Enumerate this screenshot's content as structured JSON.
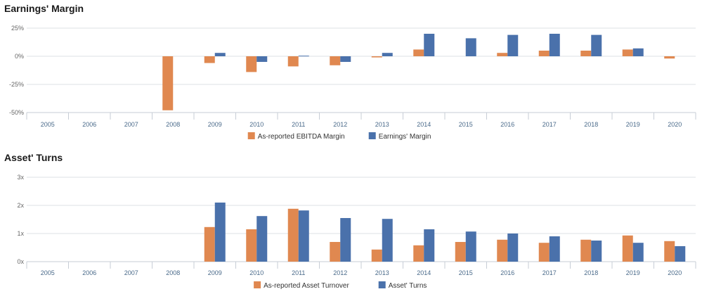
{
  "charts": [
    {
      "title": "Earnings' Margin",
      "categories": [
        "2005",
        "2006",
        "2007",
        "2008",
        "2009",
        "2010",
        "2011",
        "2012",
        "2013",
        "2014",
        "2015",
        "2016",
        "2017",
        "2018",
        "2019",
        "2020"
      ],
      "y_ticks": [
        "25%",
        "0%",
        "-25%",
        "-50%"
      ]
    },
    {
      "title": "Asset' Turns",
      "categories": [
        "2005",
        "2006",
        "2007",
        "2008",
        "2009",
        "2010",
        "2011",
        "2012",
        "2013",
        "2014",
        "2015",
        "2016",
        "2017",
        "2018",
        "2019",
        "2020"
      ],
      "y_ticks": [
        "3x",
        "2x",
        "1x",
        "0x"
      ]
    }
  ],
  "colors": {
    "orange": "#e08850",
    "blue": "#4a71ab",
    "grid": "#dde1e6",
    "axis": "#c7cdd6"
  },
  "chart_data": [
    {
      "type": "bar",
      "title": "Earnings' Margin",
      "categories": [
        "2005",
        "2006",
        "2007",
        "2008",
        "2009",
        "2010",
        "2011",
        "2012",
        "2013",
        "2014",
        "2015",
        "2016",
        "2017",
        "2018",
        "2019",
        "2020"
      ],
      "series": [
        {
          "name": "As-reported EBITDA Margin",
          "color": "#e08850",
          "values": [
            null,
            null,
            null,
            -48,
            -6,
            -14,
            -9,
            -8,
            -1,
            6,
            null,
            3,
            5,
            5,
            6,
            -2
          ]
        },
        {
          "name": "Earnings' Margin",
          "color": "#4a71ab",
          "values": [
            null,
            null,
            null,
            null,
            3,
            -5,
            0.5,
            -5,
            3,
            20,
            16,
            19,
            20,
            19,
            7,
            null
          ]
        }
      ],
      "ylim": [
        -50,
        25
      ],
      "yticks": [
        25,
        0,
        -25,
        -50
      ],
      "unit": "%",
      "grid": true,
      "legend": "bottom-center"
    },
    {
      "type": "bar",
      "title": "Asset' Turns",
      "categories": [
        "2005",
        "2006",
        "2007",
        "2008",
        "2009",
        "2010",
        "2011",
        "2012",
        "2013",
        "2014",
        "2015",
        "2016",
        "2017",
        "2018",
        "2019",
        "2020"
      ],
      "series": [
        {
          "name": "As-reported Asset Turnover",
          "color": "#e08850",
          "values": [
            null,
            null,
            null,
            null,
            1.23,
            1.15,
            1.88,
            0.7,
            0.43,
            0.58,
            0.7,
            0.78,
            0.67,
            0.78,
            0.93,
            0.73
          ]
        },
        {
          "name": "Asset' Turns",
          "color": "#4a71ab",
          "values": [
            null,
            null,
            null,
            null,
            2.1,
            1.62,
            1.82,
            1.55,
            1.52,
            1.15,
            1.07,
            1.0,
            0.9,
            0.75,
            0.67,
            0.55
          ]
        }
      ],
      "ylim": [
        0,
        3
      ],
      "yticks": [
        3,
        2,
        1,
        0
      ],
      "unit": "x",
      "grid": true,
      "legend": "bottom-center"
    }
  ]
}
